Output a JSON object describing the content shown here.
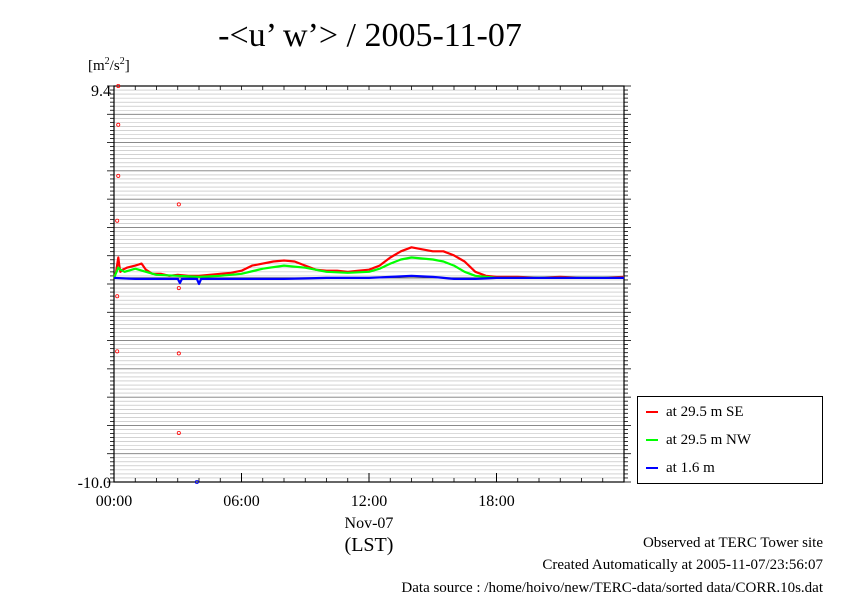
{
  "chart_data": {
    "type": "line",
    "title": "-<u’ w’> / 2005-11-07",
    "ylabel": "[m2/s2]",
    "ylabel_parts": {
      "unit_a": "m",
      "exp_a": "2",
      "sep": "/s",
      "exp_b": "2"
    },
    "xlabel": "(LST)",
    "x_date_label": "Nov-07",
    "xlim": [
      0,
      24
    ],
    "x_ticks": [
      0,
      6,
      12,
      18
    ],
    "x_tick_labels": [
      "00:00",
      "06:00",
      "12:00",
      "18:00"
    ],
    "ylim": [
      -10.0,
      9.4
    ],
    "y_tick_labels_top": "9.4",
    "y_tick_labels_bottom": "-10.0",
    "grid": true,
    "legend_position": "bottom-right",
    "series": [
      {
        "name": "at 29.5 m SE",
        "color": "#ff0000",
        "x": [
          0,
          0.1,
          0.2,
          0.25,
          0.3,
          0.4,
          0.6,
          1.0,
          1.3,
          1.5,
          1.8,
          2.2,
          2.6,
          3.0,
          3.5,
          4.0,
          4.5,
          5.0,
          5.5,
          6.0,
          6.5,
          7.0,
          7.5,
          8.0,
          8.5,
          9.0,
          9.5,
          10.0,
          10.5,
          11.0,
          11.5,
          12.0,
          12.5,
          13.0,
          13.5,
          14.0,
          14.5,
          15.0,
          15.5,
          16.0,
          16.5,
          17.0,
          17.5,
          18.0,
          19.0,
          20.0,
          21.0,
          22.0,
          23.0,
          24.0
        ],
        "y": [
          0.0,
          0.3,
          1.0,
          0.6,
          0.3,
          0.4,
          0.5,
          0.6,
          0.7,
          0.4,
          0.2,
          0.2,
          0.1,
          0.15,
          0.1,
          0.1,
          0.15,
          0.2,
          0.25,
          0.35,
          0.6,
          0.7,
          0.8,
          0.85,
          0.8,
          0.6,
          0.4,
          0.35,
          0.35,
          0.3,
          0.35,
          0.4,
          0.6,
          1.0,
          1.3,
          1.5,
          1.4,
          1.3,
          1.3,
          1.1,
          0.8,
          0.3,
          0.1,
          0.05,
          0.05,
          0.0,
          0.05,
          0.0,
          0.0,
          0.05
        ]
      },
      {
        "name": "at 29.5 m NW",
        "color": "#00ff00",
        "x": [
          0,
          0.2,
          0.3,
          0.5,
          1.0,
          1.5,
          2.0,
          3.0,
          4.0,
          5.0,
          6.0,
          7.0,
          8.0,
          9.0,
          10.0,
          11.0,
          12.0,
          12.5,
          13.0,
          13.5,
          14.0,
          14.5,
          15.0,
          15.5,
          16.0,
          16.5,
          17.0,
          17.5,
          18.0,
          19.0,
          20.0,
          21.0,
          22.0,
          23.0,
          24.0
        ],
        "y": [
          0.0,
          0.5,
          0.4,
          0.3,
          0.45,
          0.3,
          0.15,
          0.1,
          0.05,
          0.1,
          0.2,
          0.45,
          0.6,
          0.5,
          0.3,
          0.25,
          0.3,
          0.45,
          0.7,
          0.9,
          1.0,
          0.95,
          0.9,
          0.8,
          0.6,
          0.3,
          0.1,
          0.05,
          0.0,
          0.0,
          0.0,
          0.0,
          0.0,
          0.0,
          0.0
        ]
      },
      {
        "name": "at 1.6 m",
        "color": "#0000ff",
        "x": [
          0,
          1.0,
          2.0,
          3.0,
          3.1,
          3.2,
          3.4,
          3.6,
          3.9,
          4.0,
          4.1,
          5.0,
          6.0,
          8.0,
          10.0,
          12.0,
          13.0,
          14.0,
          15.0,
          16.0,
          17.0,
          18.0,
          20.0,
          22.0,
          24.0
        ],
        "y": [
          0.0,
          -0.05,
          -0.05,
          -0.05,
          -0.25,
          -0.05,
          -0.05,
          -0.05,
          -0.05,
          -0.3,
          -0.05,
          -0.05,
          -0.05,
          -0.05,
          0.0,
          0.0,
          0.05,
          0.1,
          0.05,
          -0.05,
          -0.05,
          0.0,
          0.0,
          0.0,
          0.0
        ]
      }
    ],
    "outliers": [
      {
        "x": 0.2,
        "y": 9.4,
        "color": "#ff0000"
      },
      {
        "x": 0.2,
        "y": 7.5,
        "color": "#ff0000"
      },
      {
        "x": 0.2,
        "y": 5.0,
        "color": "#ff0000"
      },
      {
        "x": 0.15,
        "y": 2.8,
        "color": "#ff0000"
      },
      {
        "x": 3.05,
        "y": 3.6,
        "color": "#ff0000"
      },
      {
        "x": 3.05,
        "y": -0.5,
        "color": "#ff0000"
      },
      {
        "x": 0.15,
        "y": -0.9,
        "color": "#ff0000"
      },
      {
        "x": 0.15,
        "y": -3.6,
        "color": "#ff0000"
      },
      {
        "x": 3.05,
        "y": -3.7,
        "color": "#ff0000"
      },
      {
        "x": 3.05,
        "y": -7.6,
        "color": "#ff0000"
      },
      {
        "x": 3.9,
        "y": -10.0,
        "color": "#0000ff"
      }
    ]
  },
  "footer": {
    "line1": "Observed at TERC Tower site",
    "line2": "Created Automatically at 2005-11-07/23:56:07",
    "line3": "Data source : /home/hoivo/new/TERC-data/sorted  data/CORR.10s.dat"
  }
}
